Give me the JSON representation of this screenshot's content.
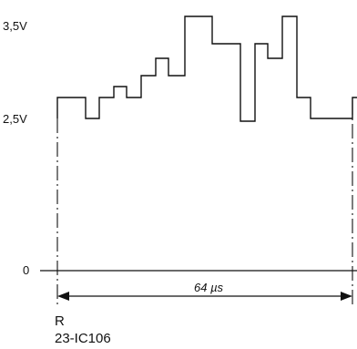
{
  "labels": {
    "top_voltage": "3,5V",
    "mid_voltage": "2,5V",
    "zero": "0",
    "duration": "64 µs",
    "ref_letter": "R",
    "ref_code": "23-IC106"
  },
  "colors": {
    "ink": "#111111",
    "background": "#ffffff"
  },
  "waveform": {
    "unit": "V",
    "levels": [
      2.5,
      2.9,
      2.9,
      2.6,
      2.9,
      3.2,
      2.9,
      3.1,
      3.4,
      3.1,
      3.5,
      3.5,
      3.4,
      2.9,
      3.4,
      3.3,
      3.5,
      2.9,
      2.6,
      2.6,
      2.9
    ]
  }
}
